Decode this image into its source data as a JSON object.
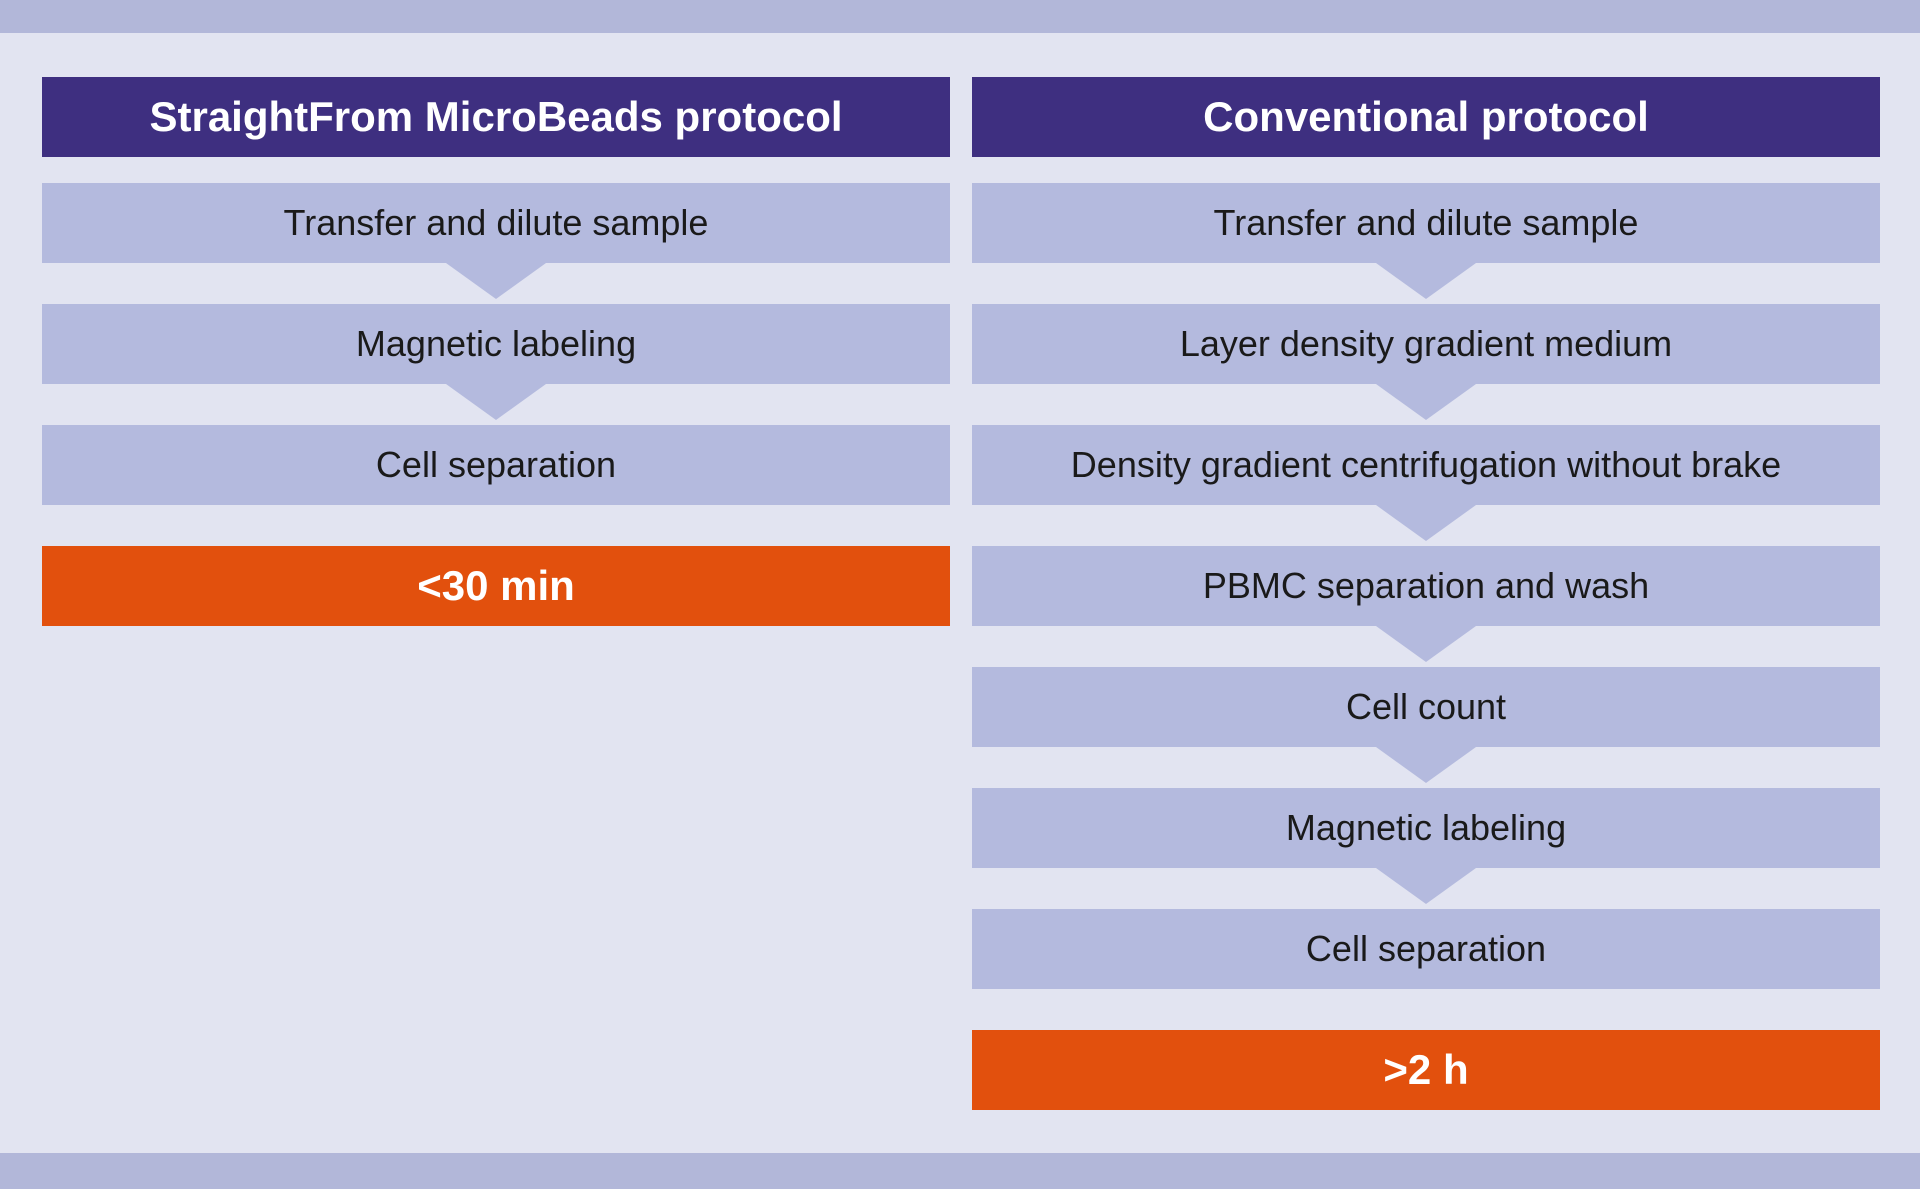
{
  "colors": {
    "background": "#e2e4f1",
    "band_bg": "#b2b7d9",
    "header_bg": "#3e2f80",
    "header_text": "#ffffff",
    "step_bg": "#b4bade",
    "step_text": "#1a1a1a",
    "time_bg": "#e2500d",
    "time_text": "#ffffff"
  },
  "diagram": {
    "type": "flowchart-comparison",
    "left_column": {
      "title": "StraightFrom MicroBeads protocol",
      "steps": [
        {
          "label": "Transfer and dilute sample"
        },
        {
          "label": "Magnetic labeling"
        },
        {
          "label": "Cell separation"
        }
      ],
      "time": "<30 min"
    },
    "right_column": {
      "title": "Conventional protocol",
      "steps": [
        {
          "label": "Transfer and dilute sample"
        },
        {
          "label": "Layer density gradient medium"
        },
        {
          "label": "Density gradient centrifugation without brake"
        },
        {
          "label": "PBMC separation and wash"
        },
        {
          "label": "Cell count"
        },
        {
          "label": "Magnetic labeling"
        },
        {
          "label": "Cell separation"
        }
      ],
      "time": ">2 h"
    }
  }
}
